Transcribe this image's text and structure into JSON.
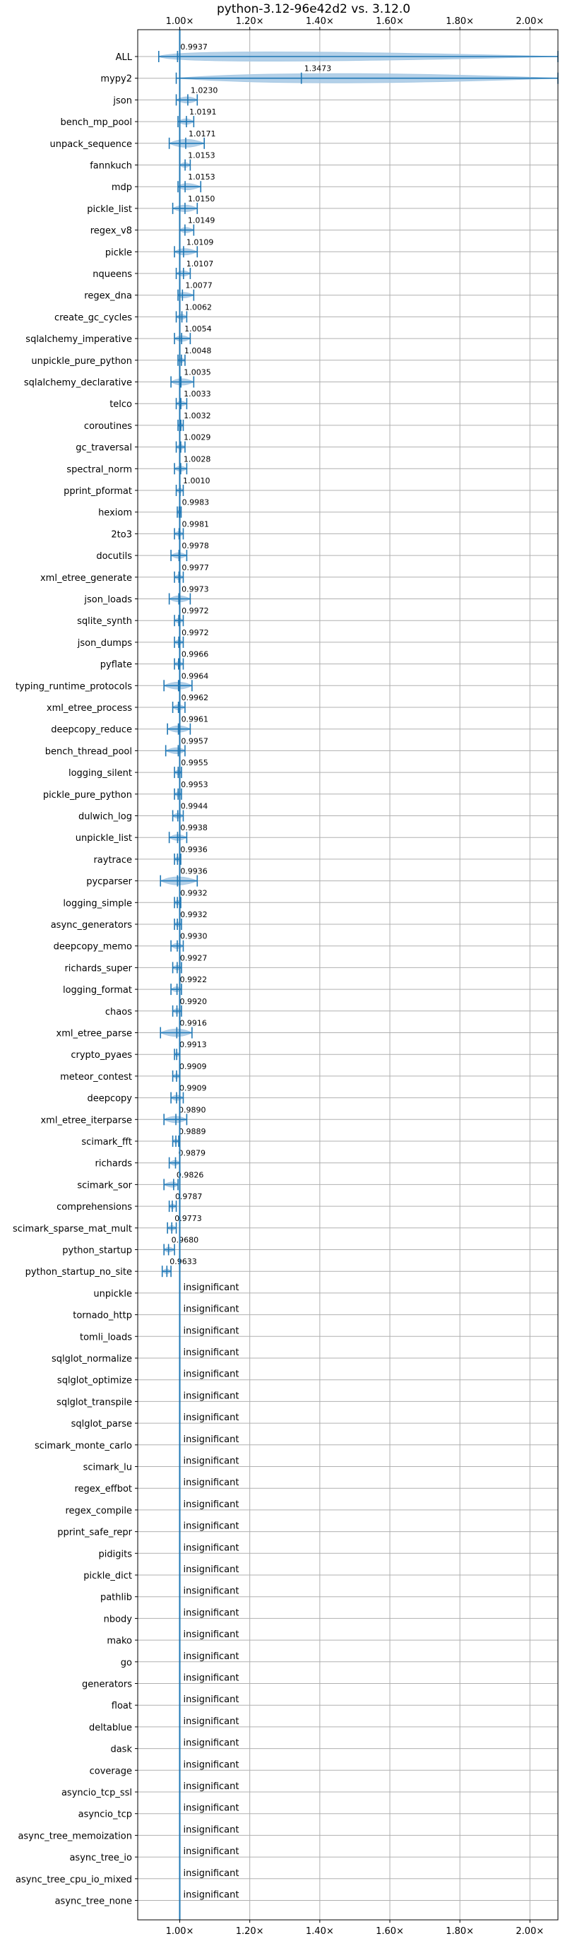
{
  "chart_data": {
    "type": "violin",
    "title": "python-3.12-96e42d2 vs. 3.12.0",
    "xlabel": "",
    "ylabel": "",
    "xlim": [
      0.88,
      2.08
    ],
    "xticks": [
      1.0,
      1.2,
      1.4,
      1.6,
      1.8,
      2.0
    ],
    "xtick_labels": [
      "1.00×",
      "1.20×",
      "1.40×",
      "1.60×",
      "1.80×",
      "2.00×"
    ],
    "grid": true,
    "reference_line": 1.0,
    "colors": {
      "accent": "#1f77b4",
      "violin_fill": "#a6c8e4",
      "grid": "#b0b0b0",
      "axis": "#000000"
    },
    "insignificant_label": "insignificant",
    "benchmarks": [
      {
        "name": "ALL",
        "value": 0.9937,
        "label": "0.9937",
        "min": 0.94,
        "max": 2.08
      },
      {
        "name": "mypy2",
        "value": 1.3473,
        "label": "1.3473",
        "min": 0.99,
        "max": 2.08
      },
      {
        "name": "json",
        "value": 1.023,
        "label": "1.0230",
        "min": 0.99,
        "max": 1.05
      },
      {
        "name": "bench_mp_pool",
        "value": 1.0191,
        "label": "1.0191",
        "min": 0.995,
        "max": 1.04
      },
      {
        "name": "unpack_sequence",
        "value": 1.0171,
        "label": "1.0171",
        "min": 0.97,
        "max": 1.07
      },
      {
        "name": "fannkuch",
        "value": 1.0153,
        "label": "1.0153",
        "min": 1.0,
        "max": 1.03
      },
      {
        "name": "mdp",
        "value": 1.0153,
        "label": "1.0153",
        "min": 0.995,
        "max": 1.06
      },
      {
        "name": "pickle_list",
        "value": 1.015,
        "label": "1.0150",
        "min": 0.98,
        "max": 1.05
      },
      {
        "name": "regex_v8",
        "value": 1.0149,
        "label": "1.0149",
        "min": 1.0,
        "max": 1.04
      },
      {
        "name": "pickle",
        "value": 1.0109,
        "label": "1.0109",
        "min": 0.985,
        "max": 1.05
      },
      {
        "name": "nqueens",
        "value": 1.0107,
        "label": "1.0107",
        "min": 0.99,
        "max": 1.03
      },
      {
        "name": "regex_dna",
        "value": 1.0077,
        "label": "1.0077",
        "min": 0.995,
        "max": 1.04
      },
      {
        "name": "create_gc_cycles",
        "value": 1.0062,
        "label": "1.0062",
        "min": 0.99,
        "max": 1.02
      },
      {
        "name": "sqlalchemy_imperative",
        "value": 1.0054,
        "label": "1.0054",
        "min": 0.985,
        "max": 1.03
      },
      {
        "name": "unpickle_pure_python",
        "value": 1.0048,
        "label": "1.0048",
        "min": 0.995,
        "max": 1.015
      },
      {
        "name": "sqlalchemy_declarative",
        "value": 1.0035,
        "label": "1.0035",
        "min": 0.975,
        "max": 1.04
      },
      {
        "name": "telco",
        "value": 1.0033,
        "label": "1.0033",
        "min": 0.99,
        "max": 1.02
      },
      {
        "name": "coroutines",
        "value": 1.0032,
        "label": "1.0032",
        "min": 0.995,
        "max": 1.01
      },
      {
        "name": "gc_traversal",
        "value": 1.0029,
        "label": "1.0029",
        "min": 0.99,
        "max": 1.015
      },
      {
        "name": "spectral_norm",
        "value": 1.0028,
        "label": "1.0028",
        "min": 0.985,
        "max": 1.02
      },
      {
        "name": "pprint_pformat",
        "value": 1.001,
        "label": "1.0010",
        "min": 0.99,
        "max": 1.01
      },
      {
        "name": "hexiom",
        "value": 0.9983,
        "label": "0.9983",
        "min": 0.993,
        "max": 1.004
      },
      {
        "name": "2to3",
        "value": 0.9981,
        "label": "0.9981",
        "min": 0.985,
        "max": 1.01
      },
      {
        "name": "docutils",
        "value": 0.9978,
        "label": "0.9978",
        "min": 0.975,
        "max": 1.02
      },
      {
        "name": "xml_etree_generate",
        "value": 0.9977,
        "label": "0.9977",
        "min": 0.985,
        "max": 1.01
      },
      {
        "name": "json_loads",
        "value": 0.9973,
        "label": "0.9973",
        "min": 0.97,
        "max": 1.03
      },
      {
        "name": "sqlite_synth",
        "value": 0.9972,
        "label": "0.9972",
        "min": 0.985,
        "max": 1.01
      },
      {
        "name": "json_dumps",
        "value": 0.9972,
        "label": "0.9972",
        "min": 0.985,
        "max": 1.01
      },
      {
        "name": "pyflate",
        "value": 0.9966,
        "label": "0.9966",
        "min": 0.985,
        "max": 1.01
      },
      {
        "name": "typing_runtime_protocols",
        "value": 0.9964,
        "label": "0.9964",
        "min": 0.955,
        "max": 1.035
      },
      {
        "name": "xml_etree_process",
        "value": 0.9962,
        "label": "0.9962",
        "min": 0.98,
        "max": 1.015
      },
      {
        "name": "deepcopy_reduce",
        "value": 0.9961,
        "label": "0.9961",
        "min": 0.965,
        "max": 1.03
      },
      {
        "name": "bench_thread_pool",
        "value": 0.9957,
        "label": "0.9957",
        "min": 0.96,
        "max": 1.015
      },
      {
        "name": "logging_silent",
        "value": 0.9955,
        "label": "0.9955",
        "min": 0.985,
        "max": 1.005
      },
      {
        "name": "pickle_pure_python",
        "value": 0.9953,
        "label": "0.9953",
        "min": 0.985,
        "max": 1.005
      },
      {
        "name": "dulwich_log",
        "value": 0.9944,
        "label": "0.9944",
        "min": 0.98,
        "max": 1.01
      },
      {
        "name": "unpickle_list",
        "value": 0.9938,
        "label": "0.9938",
        "min": 0.97,
        "max": 1.02
      },
      {
        "name": "raytrace",
        "value": 0.9936,
        "label": "0.9936",
        "min": 0.985,
        "max": 1.003
      },
      {
        "name": "pycparser",
        "value": 0.9936,
        "label": "0.9936",
        "min": 0.945,
        "max": 1.05
      },
      {
        "name": "logging_simple",
        "value": 0.9932,
        "label": "0.9932",
        "min": 0.985,
        "max": 1.003
      },
      {
        "name": "async_generators",
        "value": 0.9932,
        "label": "0.9932",
        "min": 0.985,
        "max": 1.005
      },
      {
        "name": "deepcopy_memo",
        "value": 0.993,
        "label": "0.9930",
        "min": 0.975,
        "max": 1.01
      },
      {
        "name": "richards_super",
        "value": 0.9927,
        "label": "0.9927",
        "min": 0.98,
        "max": 1.005
      },
      {
        "name": "logging_format",
        "value": 0.9922,
        "label": "0.9922",
        "min": 0.975,
        "max": 1.005
      },
      {
        "name": "chaos",
        "value": 0.992,
        "label": "0.9920",
        "min": 0.98,
        "max": 1.005
      },
      {
        "name": "xml_etree_parse",
        "value": 0.9916,
        "label": "0.9916",
        "min": 0.945,
        "max": 1.035
      },
      {
        "name": "crypto_pyaes",
        "value": 0.9913,
        "label": "0.9913",
        "min": 0.985,
        "max": 1.0
      },
      {
        "name": "meteor_contest",
        "value": 0.9909,
        "label": "0.9909",
        "min": 0.98,
        "max": 1.0
      },
      {
        "name": "deepcopy",
        "value": 0.9909,
        "label": "0.9909",
        "min": 0.975,
        "max": 1.01
      },
      {
        "name": "xml_etree_iterparse",
        "value": 0.989,
        "label": "0.9890",
        "min": 0.955,
        "max": 1.02
      },
      {
        "name": "scimark_fft",
        "value": 0.9889,
        "label": "0.9889",
        "min": 0.98,
        "max": 0.997
      },
      {
        "name": "richards",
        "value": 0.9879,
        "label": "0.9879",
        "min": 0.97,
        "max": 1.0
      },
      {
        "name": "scimark_sor",
        "value": 0.9826,
        "label": "0.9826",
        "min": 0.955,
        "max": 0.995
      },
      {
        "name": "comprehensions",
        "value": 0.9787,
        "label": "0.9787",
        "min": 0.97,
        "max": 0.99
      },
      {
        "name": "scimark_sparse_mat_mult",
        "value": 0.9773,
        "label": "0.9773",
        "min": 0.965,
        "max": 0.99
      },
      {
        "name": "python_startup",
        "value": 0.968,
        "label": "0.9680",
        "min": 0.955,
        "max": 0.985
      },
      {
        "name": "python_startup_no_site",
        "value": 0.9633,
        "label": "0.9633",
        "min": 0.95,
        "max": 0.975
      },
      {
        "name": "unpickle",
        "insignificant": true
      },
      {
        "name": "tornado_http",
        "insignificant": true
      },
      {
        "name": "tomli_loads",
        "insignificant": true
      },
      {
        "name": "sqlglot_normalize",
        "insignificant": true
      },
      {
        "name": "sqlglot_optimize",
        "insignificant": true
      },
      {
        "name": "sqlglot_transpile",
        "insignificant": true
      },
      {
        "name": "sqlglot_parse",
        "insignificant": true
      },
      {
        "name": "scimark_monte_carlo",
        "insignificant": true
      },
      {
        "name": "scimark_lu",
        "insignificant": true
      },
      {
        "name": "regex_effbot",
        "insignificant": true
      },
      {
        "name": "regex_compile",
        "insignificant": true
      },
      {
        "name": "pprint_safe_repr",
        "insignificant": true
      },
      {
        "name": "pidigits",
        "insignificant": true
      },
      {
        "name": "pickle_dict",
        "insignificant": true
      },
      {
        "name": "pathlib",
        "insignificant": true
      },
      {
        "name": "nbody",
        "insignificant": true
      },
      {
        "name": "mako",
        "insignificant": true
      },
      {
        "name": "go",
        "insignificant": true
      },
      {
        "name": "generators",
        "insignificant": true
      },
      {
        "name": "float",
        "insignificant": true
      },
      {
        "name": "deltablue",
        "insignificant": true
      },
      {
        "name": "dask",
        "insignificant": true
      },
      {
        "name": "coverage",
        "insignificant": true
      },
      {
        "name": "asyncio_tcp_ssl",
        "insignificant": true
      },
      {
        "name": "asyncio_tcp",
        "insignificant": true
      },
      {
        "name": "async_tree_memoization",
        "insignificant": true
      },
      {
        "name": "async_tree_io",
        "insignificant": true
      },
      {
        "name": "async_tree_cpu_io_mixed",
        "insignificant": true
      },
      {
        "name": "async_tree_none",
        "insignificant": true
      }
    ]
  }
}
